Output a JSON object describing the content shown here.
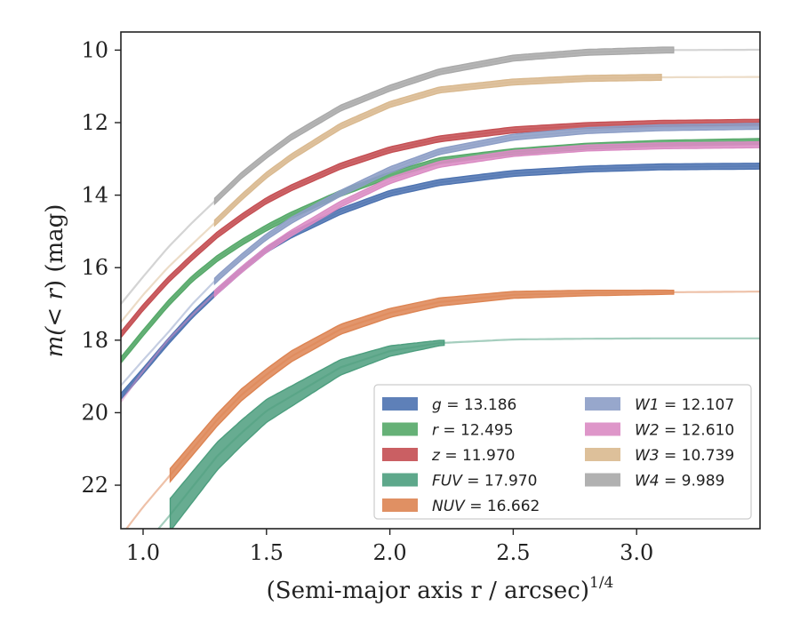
{
  "chart_data": {
    "type": "line",
    "xlabel": "(Semi-major axis r / arcsec)",
    "xlabel_superscript": "1/4",
    "ylabel_prefix": "m(",
    "ylabel_math": "< r",
    "ylabel_suffix": ") (mag)",
    "xlim": [
      0.91,
      3.5
    ],
    "ylim": [
      23.2,
      9.5
    ],
    "y_inverted": true,
    "xticks": [
      1.0,
      1.5,
      2.0,
      2.5,
      3.0
    ],
    "xtick_labels": [
      "1.0",
      "1.5",
      "2.0",
      "2.5",
      "3.0"
    ],
    "yticks": [
      10,
      12,
      14,
      16,
      18,
      20,
      22
    ],
    "ytick_labels": [
      "10",
      "12",
      "14",
      "16",
      "18",
      "20",
      "22"
    ],
    "grid": false,
    "legend_position": "lower-right",
    "series": [
      {
        "name": "g",
        "value_text": "13.186",
        "color": "#4c72b0",
        "x": [
          0.91,
          1.0,
          1.1,
          1.2,
          1.3,
          1.4,
          1.5,
          1.6,
          1.8,
          2.0,
          2.2,
          2.5,
          2.8,
          3.1,
          3.5
        ],
        "y": [
          19.55,
          18.85,
          18.05,
          17.3,
          16.65,
          16.05,
          15.5,
          15.1,
          14.45,
          13.95,
          13.65,
          13.4,
          13.28,
          13.22,
          13.2
        ],
        "band_from": 0.91,
        "band_to": 3.5,
        "band_width": 0.08,
        "faint_from": 3.5,
        "faint_to": 3.5
      },
      {
        "name": "r",
        "value_text": "12.495",
        "color": "#55a868",
        "x": [
          0.91,
          1.0,
          1.1,
          1.2,
          1.3,
          1.4,
          1.5,
          1.6,
          1.8,
          2.0,
          2.2,
          2.5,
          2.8,
          3.1,
          3.5
        ],
        "y": [
          18.55,
          17.8,
          17.0,
          16.3,
          15.75,
          15.3,
          14.9,
          14.55,
          13.95,
          13.45,
          13.05,
          12.8,
          12.65,
          12.57,
          12.52
        ],
        "band_from": 0.91,
        "band_to": 3.5,
        "band_width": 0.08,
        "faint_from": 3.5,
        "faint_to": 3.5
      },
      {
        "name": "z",
        "value_text": "11.970",
        "color": "#c44e52",
        "x": [
          0.91,
          1.0,
          1.1,
          1.2,
          1.3,
          1.4,
          1.5,
          1.6,
          1.8,
          2.0,
          2.2,
          2.5,
          2.8,
          3.1,
          3.5
        ],
        "y": [
          17.85,
          17.1,
          16.35,
          15.7,
          15.1,
          14.6,
          14.15,
          13.8,
          13.2,
          12.75,
          12.45,
          12.2,
          12.08,
          12.02,
          11.99
        ],
        "band_from": 0.91,
        "band_to": 3.5,
        "band_width": 0.08,
        "faint_from": 3.5,
        "faint_to": 3.5
      },
      {
        "name": "FUV",
        "value_text": "17.970",
        "color": "#4c9e7e",
        "x": [
          0.91,
          1.0,
          1.1,
          1.2,
          1.3,
          1.4,
          1.5,
          1.6,
          1.8,
          2.0,
          2.2,
          2.5,
          2.8,
          3.1,
          3.5
        ],
        "y": [
          24.1,
          23.7,
          22.9,
          22.05,
          21.2,
          20.55,
          19.95,
          19.55,
          18.75,
          18.3,
          18.08,
          17.98,
          17.96,
          17.95,
          17.95
        ],
        "band_from": 1.11,
        "band_to": 2.22,
        "band_width": 0.45,
        "faint_from": 1.11,
        "faint_to": 2.22
      },
      {
        "name": "NUV",
        "value_text": "16.662",
        "color": "#dd8452",
        "x": [
          0.91,
          1.0,
          1.1,
          1.2,
          1.3,
          1.4,
          1.5,
          1.6,
          1.8,
          2.0,
          2.2,
          2.5,
          2.8,
          3.1,
          3.5
        ],
        "y": [
          23.4,
          22.6,
          21.8,
          21.0,
          20.2,
          19.5,
          18.95,
          18.45,
          17.7,
          17.25,
          16.95,
          16.75,
          16.7,
          16.68,
          16.66
        ],
        "band_from": 1.11,
        "band_to": 3.15,
        "band_width": 0.18,
        "faint_from": 1.11,
        "faint_to": 3.15
      },
      {
        "name": "W1",
        "value_text": "12.107",
        "color": "#8c9dc6",
        "x": [
          0.91,
          1.0,
          1.1,
          1.2,
          1.3,
          1.4,
          1.5,
          1.6,
          1.8,
          2.0,
          2.2,
          2.5,
          2.8,
          3.1,
          3.5
        ],
        "y": [
          19.25,
          18.55,
          17.8,
          17.0,
          16.3,
          15.7,
          15.15,
          14.7,
          13.95,
          13.3,
          12.8,
          12.4,
          12.22,
          12.14,
          12.1
        ],
        "band_from": 1.29,
        "band_to": 3.5,
        "band_width": 0.08,
        "faint_from": 1.29,
        "faint_to": 3.5
      },
      {
        "name": "W2",
        "value_text": "12.610",
        "color": "#da8bc3",
        "x": [
          0.91,
          1.0,
          1.1,
          1.2,
          1.3,
          1.4,
          1.5,
          1.6,
          1.8,
          2.0,
          2.2,
          2.5,
          2.8,
          3.1,
          3.5
        ],
        "y": [
          19.7,
          18.85,
          18.0,
          17.3,
          16.65,
          16.05,
          15.5,
          15.05,
          14.25,
          13.6,
          13.15,
          12.85,
          12.7,
          12.64,
          12.61
        ],
        "band_from": 1.29,
        "band_to": 3.5,
        "band_width": 0.08,
        "faint_from": 1.29,
        "faint_to": 3.5
      },
      {
        "name": "W3",
        "value_text": "10.739",
        "color": "#d9b98f",
        "x": [
          0.91,
          1.0,
          1.1,
          1.2,
          1.3,
          1.4,
          1.5,
          1.6,
          1.8,
          2.0,
          2.2,
          2.5,
          2.8,
          3.1,
          3.5
        ],
        "y": [
          17.5,
          16.75,
          16.0,
          15.35,
          14.7,
          14.05,
          13.45,
          12.95,
          12.1,
          11.5,
          11.1,
          10.88,
          10.78,
          10.75,
          10.74
        ],
        "band_from": 1.29,
        "band_to": 3.1,
        "band_width": 0.08,
        "faint_from": 1.29,
        "faint_to": 3.1
      },
      {
        "name": "W4",
        "value_text": "9.989",
        "color": "#a9a9a9",
        "x": [
          0.91,
          1.0,
          1.1,
          1.2,
          1.3,
          1.4,
          1.5,
          1.6,
          1.8,
          2.0,
          2.2,
          2.5,
          2.8,
          3.1,
          3.5
        ],
        "y": [
          17.0,
          16.25,
          15.45,
          14.75,
          14.1,
          13.45,
          12.9,
          12.4,
          11.6,
          11.05,
          10.6,
          10.22,
          10.06,
          10.0,
          9.99
        ],
        "band_from": 1.29,
        "band_to": 3.15,
        "band_width": 0.08,
        "faint_from": 1.29,
        "faint_to": 3.15
      }
    ]
  }
}
